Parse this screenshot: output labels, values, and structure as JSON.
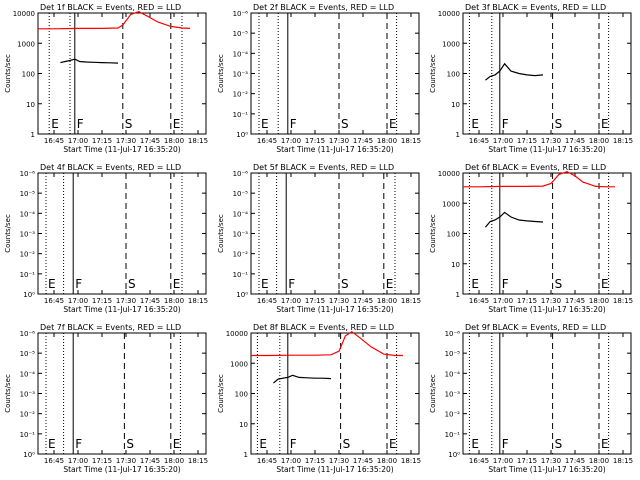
{
  "figure": {
    "panel_title_suffix": "BLACK = Events, RED = LLD",
    "xlabel": "Start Time (11-Jul-17 16:35:20)",
    "ylabel": "Counts/sec",
    "colors": {
      "events": "#000000",
      "lld": "#ff0000",
      "axes": "#000000",
      "background": "#ffffff"
    }
  },
  "chart_data": [
    {
      "type": "line",
      "detector": "1f",
      "title": "Det 1f",
      "ytype": "linear-log-ticks-decades",
      "ylim": [
        1,
        10000
      ],
      "yticks": [
        "10000",
        "1000",
        "100",
        "10",
        "1"
      ],
      "xticks": [
        "16:45",
        "17:00",
        "17:15",
        "17:30",
        "17:45",
        "18:00",
        "18:15"
      ],
      "markers": [
        {
          "label": "E",
          "x": "16:42",
          "style": "dotted"
        },
        {
          "label": "F",
          "x": "16:58",
          "style": "solid"
        },
        {
          "label": "S",
          "x": "17:28",
          "style": "dashed"
        },
        {
          "label": "E",
          "x": "17:58",
          "style": "dashed"
        },
        {
          "label": "",
          "x": "16:55",
          "style": "dotted"
        },
        {
          "label": "",
          "x": "18:05",
          "style": "dotted"
        }
      ],
      "series": [
        {
          "key": "events",
          "x": [
            "16:49",
            "16:52",
            "16:55",
            "16:58",
            "17:01",
            "17:05",
            "17:10",
            "17:15",
            "17:20",
            "17:25"
          ],
          "y": [
            230,
            250,
            270,
            300,
            250,
            240,
            235,
            230,
            225,
            220
          ]
        },
        {
          "key": "lld",
          "x": [
            "16:35",
            "16:45",
            "17:00",
            "17:15",
            "17:25",
            "17:28",
            "17:33",
            "17:38",
            "17:43",
            "17:50",
            "17:58",
            "18:05",
            "18:10"
          ],
          "y": [
            3000,
            3000,
            3100,
            3100,
            3200,
            4000,
            9000,
            11000,
            8000,
            5000,
            3600,
            3200,
            3100
          ]
        }
      ]
    },
    {
      "type": "line",
      "detector": "2f",
      "title": "Det 2f",
      "ytype": "log",
      "ylim": [
        1,
        1e-06
      ],
      "yticks": [
        "10⁻⁶",
        "10⁻⁵",
        "10⁻⁴",
        "10⁻³",
        "10⁻²",
        "10⁻¹",
        "10⁰"
      ],
      "xticks": [
        "16:45",
        "17:00",
        "17:15",
        "17:30",
        "17:45",
        "18:00",
        "18:15"
      ],
      "markers": [
        {
          "label": "E",
          "x": "16:40",
          "style": "dotted"
        },
        {
          "label": "F",
          "x": "16:58",
          "style": "solid"
        },
        {
          "label": "S",
          "x": "17:30",
          "style": "dashed"
        },
        {
          "label": "E",
          "x": "18:00",
          "style": "dashed"
        },
        {
          "label": "",
          "x": "16:52",
          "style": "dotted"
        },
        {
          "label": "",
          "x": "18:06",
          "style": "dotted"
        }
      ],
      "series": []
    },
    {
      "type": "line",
      "detector": "3f",
      "title": "Det 3f",
      "ytype": "linear-log-ticks-decades",
      "ylim": [
        1,
        10000
      ],
      "yticks": [
        "10000",
        "1000",
        "100",
        "10",
        "1"
      ],
      "xticks": [
        "16:45",
        "17:00",
        "17:15",
        "17:30",
        "17:45",
        "18:00",
        "18:15"
      ],
      "markers": [
        {
          "label": "E",
          "x": "16:39",
          "style": "dotted"
        },
        {
          "label": "F",
          "x": "16:58",
          "style": "solid"
        },
        {
          "label": "S",
          "x": "17:31",
          "style": "dashed"
        },
        {
          "label": "E",
          "x": "18:00",
          "style": "dashed"
        },
        {
          "label": "",
          "x": "16:53",
          "style": "dotted"
        },
        {
          "label": "",
          "x": "18:06",
          "style": "dotted"
        }
      ],
      "series": [
        {
          "key": "events",
          "x": [
            "16:49",
            "16:52",
            "16:55",
            "16:58",
            "17:01",
            "17:05",
            "17:10",
            "17:15",
            "17:20",
            "17:25"
          ],
          "y": [
            60,
            80,
            90,
            120,
            210,
            120,
            100,
            90,
            85,
            90
          ]
        }
      ]
    },
    {
      "type": "line",
      "detector": "4f",
      "title": "Det 4f",
      "ytype": "log",
      "ylim": [
        1,
        1e-06
      ],
      "yticks": [
        "10⁻⁶",
        "10⁻⁵",
        "10⁻⁴",
        "10⁻³",
        "10⁻²",
        "10⁻¹",
        "10⁰"
      ],
      "xticks": [
        "16:45",
        "17:00",
        "17:15",
        "17:30",
        "17:45",
        "18:00",
        "18:15"
      ],
      "markers": [
        {
          "label": "E",
          "x": "16:40",
          "style": "dotted"
        },
        {
          "label": "F",
          "x": "16:57",
          "style": "solid"
        },
        {
          "label": "S",
          "x": "17:30",
          "style": "dashed"
        },
        {
          "label": "E",
          "x": "17:58",
          "style": "dashed"
        },
        {
          "label": "",
          "x": "16:51",
          "style": "dotted"
        },
        {
          "label": "",
          "x": "18:05",
          "style": "dotted"
        }
      ],
      "series": []
    },
    {
      "type": "line",
      "detector": "5f",
      "title": "Det 5f",
      "ytype": "log",
      "ylim": [
        1,
        1e-06
      ],
      "yticks": [
        "10⁻⁶",
        "10⁻⁵",
        "10⁻⁴",
        "10⁻³",
        "10⁻²",
        "10⁻¹",
        "10⁰"
      ],
      "xticks": [
        "16:45",
        "17:00",
        "17:15",
        "17:30",
        "17:45",
        "18:00",
        "18:15"
      ],
      "markers": [
        {
          "label": "E",
          "x": "16:40",
          "style": "dotted"
        },
        {
          "label": "F",
          "x": "16:57",
          "style": "solid"
        },
        {
          "label": "S",
          "x": "17:30",
          "style": "dashed"
        },
        {
          "label": "E",
          "x": "17:58",
          "style": "dashed"
        },
        {
          "label": "",
          "x": "16:51",
          "style": "dotted"
        },
        {
          "label": "",
          "x": "18:05",
          "style": "dotted"
        }
      ],
      "series": []
    },
    {
      "type": "line",
      "detector": "6f",
      "title": "Det 6f",
      "ytype": "linear-log-ticks-decades",
      "ylim": [
        1,
        10000
      ],
      "yticks": [
        "10000",
        "1000",
        "100",
        "10",
        "1"
      ],
      "xticks": [
        "16:45",
        "17:00",
        "17:15",
        "17:30",
        "17:45",
        "18:00",
        "18:15"
      ],
      "markers": [
        {
          "label": "E",
          "x": "16:39",
          "style": "dotted"
        },
        {
          "label": "F",
          "x": "16:58",
          "style": "solid"
        },
        {
          "label": "S",
          "x": "17:31",
          "style": "dashed"
        },
        {
          "label": "E",
          "x": "18:00",
          "style": "dashed"
        },
        {
          "label": "",
          "x": "16:53",
          "style": "dotted"
        },
        {
          "label": "",
          "x": "18:06",
          "style": "dotted"
        }
      ],
      "series": [
        {
          "key": "events",
          "x": [
            "16:49",
            "16:52",
            "16:55",
            "16:58",
            "17:01",
            "17:05",
            "17:10",
            "17:15",
            "17:20",
            "17:25"
          ],
          "y": [
            160,
            250,
            280,
            350,
            500,
            350,
            280,
            260,
            250,
            240
          ]
        },
        {
          "key": "lld",
          "x": [
            "16:35",
            "16:45",
            "17:00",
            "17:15",
            "17:25",
            "17:30",
            "17:35",
            "17:40",
            "17:45",
            "17:50",
            "17:58",
            "18:05",
            "18:10"
          ],
          "y": [
            3500,
            3500,
            3600,
            3600,
            3700,
            4500,
            9000,
            11000,
            8000,
            5000,
            3600,
            3500,
            3500
          ]
        }
      ]
    },
    {
      "type": "line",
      "detector": "7f",
      "title": "Det 7f",
      "ytype": "log",
      "ylim": [
        1,
        1e-06
      ],
      "yticks": [
        "10⁻⁶",
        "10⁻⁵",
        "10⁻⁴",
        "10⁻³",
        "10⁻²",
        "10⁻¹",
        "10⁰"
      ],
      "xticks": [
        "16:45",
        "17:00",
        "17:15",
        "17:30",
        "17:45",
        "18:00",
        "18:15"
      ],
      "markers": [
        {
          "label": "E",
          "x": "16:40",
          "style": "dotted"
        },
        {
          "label": "F",
          "x": "16:57",
          "style": "solid"
        },
        {
          "label": "S",
          "x": "17:29",
          "style": "dashed"
        },
        {
          "label": "E",
          "x": "17:58",
          "style": "dashed"
        },
        {
          "label": "",
          "x": "16:51",
          "style": "dotted"
        },
        {
          "label": "",
          "x": "18:04",
          "style": "dotted"
        }
      ],
      "series": []
    },
    {
      "type": "line",
      "detector": "8f",
      "title": "Det 8f",
      "ytype": "linear-log-ticks-decades",
      "ylim": [
        1,
        10000
      ],
      "yticks": [
        "10000",
        "1000",
        "100",
        "10",
        "1"
      ],
      "xticks": [
        "16:45",
        "17:00",
        "17:15",
        "17:30",
        "17:45",
        "18:00",
        "18:15"
      ],
      "markers": [
        {
          "label": "E",
          "x": "16:39",
          "style": "dotted"
        },
        {
          "label": "F",
          "x": "16:58",
          "style": "solid"
        },
        {
          "label": "S",
          "x": "17:31",
          "style": "dashed"
        },
        {
          "label": "E",
          "x": "18:00",
          "style": "dashed"
        },
        {
          "label": "",
          "x": "16:53",
          "style": "dotted"
        },
        {
          "label": "",
          "x": "18:06",
          "style": "dotted"
        }
      ],
      "series": [
        {
          "key": "events",
          "x": [
            "16:49",
            "16:52",
            "16:55",
            "16:58",
            "17:01",
            "17:05",
            "17:10",
            "17:15",
            "17:20",
            "17:25"
          ],
          "y": [
            220,
            300,
            320,
            340,
            400,
            340,
            330,
            320,
            320,
            310
          ]
        },
        {
          "key": "lld",
          "x": [
            "16:35",
            "16:45",
            "17:00",
            "17:15",
            "17:25",
            "17:30",
            "17:34",
            "17:38",
            "17:43",
            "17:50",
            "17:58",
            "18:05",
            "18:10"
          ],
          "y": [
            1800,
            1800,
            1850,
            1850,
            1900,
            2500,
            8000,
            11000,
            7000,
            3500,
            2000,
            1800,
            1800
          ]
        }
      ]
    },
    {
      "type": "line",
      "detector": "9f",
      "title": "Det 9f",
      "ytype": "log",
      "ylim": [
        1,
        1e-06
      ],
      "yticks": [
        "10⁻⁶",
        "10⁻⁵",
        "10⁻⁴",
        "10⁻³",
        "10⁻²",
        "10⁻¹",
        "10⁰"
      ],
      "xticks": [
        "16:45",
        "17:00",
        "17:15",
        "17:30",
        "17:45",
        "18:00",
        "18:15"
      ],
      "markers": [
        {
          "label": "E",
          "x": "16:39",
          "style": "dotted"
        },
        {
          "label": "F",
          "x": "16:58",
          "style": "solid"
        },
        {
          "label": "S",
          "x": "17:31",
          "style": "dashed"
        },
        {
          "label": "E",
          "x": "18:00",
          "style": "dashed"
        },
        {
          "label": "",
          "x": "16:53",
          "style": "dotted"
        },
        {
          "label": "",
          "x": "18:06",
          "style": "dotted"
        }
      ],
      "series": []
    }
  ]
}
